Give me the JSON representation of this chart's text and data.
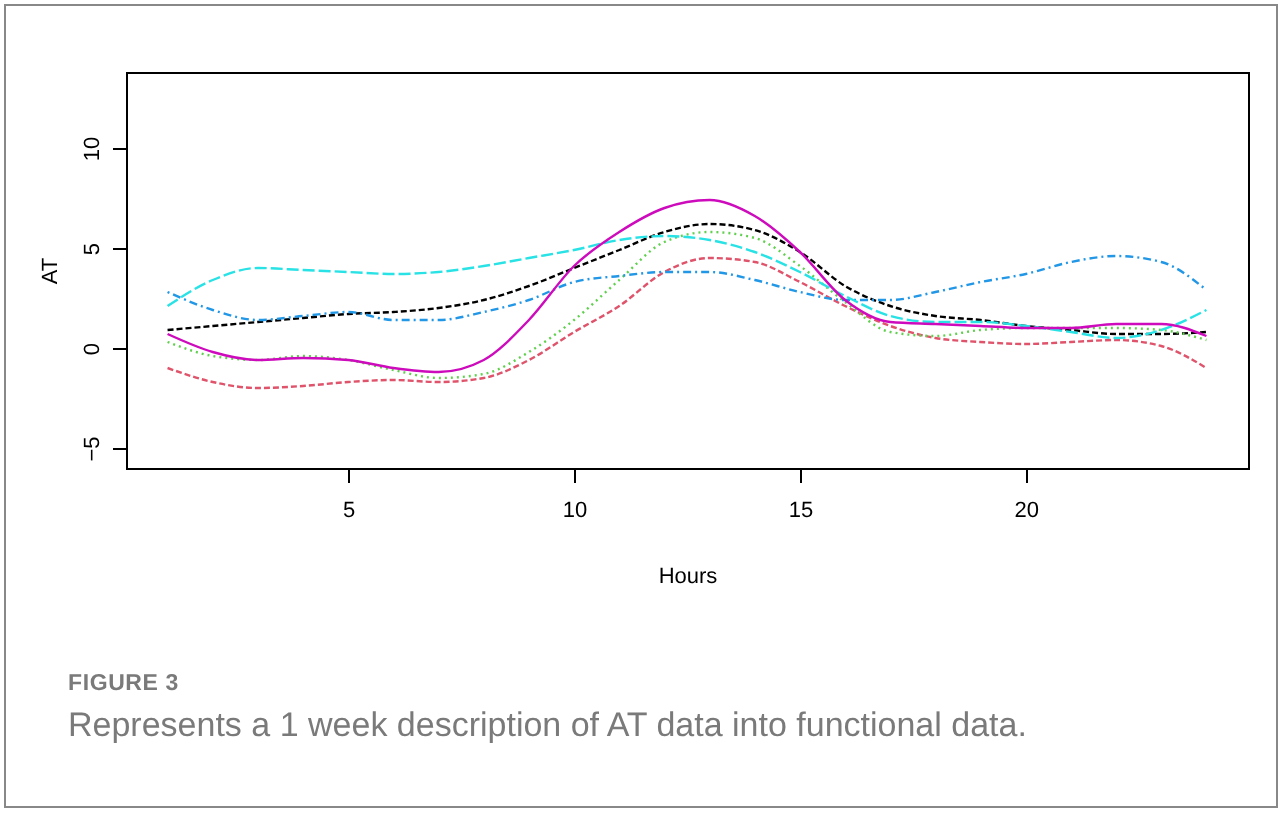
{
  "chart_data": {
    "type": "line",
    "xlabel": "Hours",
    "ylabel": "AT",
    "annotations": [
      "FIGURE 3",
      "Represents a 1 week description of AT data into functional data."
    ],
    "x": [
      1,
      2,
      3,
      4,
      5,
      6,
      7,
      8,
      9,
      10,
      11,
      12,
      13,
      14,
      15,
      16,
      17,
      18,
      19,
      20,
      21,
      22,
      23,
      24
    ],
    "xlim": [
      0.08,
      24.92
    ],
    "xticks": [
      5,
      10,
      15,
      20
    ],
    "ylim": [
      -6,
      13.8
    ],
    "yticks": [
      -5,
      0,
      5,
      10
    ],
    "grid": false,
    "marker": "none",
    "series": [
      {
        "color": "#000000",
        "line_style": "dashed",
        "values": [
          0.9,
          1.1,
          1.3,
          1.5,
          1.7,
          1.8,
          2.0,
          2.4,
          3.1,
          4.0,
          4.9,
          5.8,
          6.2,
          5.9,
          4.8,
          3.1,
          2.1,
          1.6,
          1.4,
          1.1,
          0.9,
          0.7,
          0.7,
          0.8
        ]
      },
      {
        "color": "#df536b",
        "line_style": "dashed",
        "values": [
          -1.0,
          -1.7,
          -2.0,
          -1.9,
          -1.7,
          -1.6,
          -1.7,
          -1.5,
          -0.6,
          0.8,
          2.1,
          3.8,
          4.5,
          4.3,
          3.3,
          2.1,
          1.1,
          0.5,
          0.3,
          0.2,
          0.3,
          0.4,
          0.1,
          -1.0
        ]
      },
      {
        "color": "#61d04f",
        "line_style": "dotted",
        "values": [
          0.3,
          -0.4,
          -0.6,
          -0.4,
          -0.6,
          -1.1,
          -1.5,
          -1.3,
          -0.2,
          1.4,
          3.4,
          5.3,
          5.8,
          5.5,
          4.1,
          2.3,
          0.8,
          0.6,
          0.9,
          1.0,
          1.0,
          1.0,
          0.9,
          0.4
        ]
      },
      {
        "color": "#2297e6",
        "line_style": "dashdot",
        "values": [
          2.8,
          1.9,
          1.4,
          1.6,
          1.8,
          1.4,
          1.4,
          1.8,
          2.4,
          3.3,
          3.6,
          3.8,
          3.8,
          3.4,
          2.8,
          2.4,
          2.4,
          2.8,
          3.3,
          3.7,
          4.3,
          4.6,
          4.3,
          2.9
        ]
      },
      {
        "color": "#28e2e5",
        "line_style": "longdash",
        "values": [
          2.1,
          3.4,
          4.0,
          3.9,
          3.8,
          3.7,
          3.8,
          4.1,
          4.5,
          4.9,
          5.4,
          5.6,
          5.4,
          4.8,
          3.8,
          2.6,
          1.6,
          1.3,
          1.3,
          1.1,
          0.8,
          0.5,
          0.9,
          1.9
        ]
      },
      {
        "color": "#cd0bbc",
        "line_style": "solid",
        "values": [
          0.7,
          -0.2,
          -0.6,
          -0.5,
          -0.6,
          -1.0,
          -1.2,
          -0.6,
          1.4,
          4.1,
          5.8,
          7.0,
          7.4,
          6.6,
          4.8,
          2.4,
          1.3,
          1.2,
          1.1,
          1.0,
          1.0,
          1.2,
          1.2,
          0.6
        ]
      }
    ]
  }
}
